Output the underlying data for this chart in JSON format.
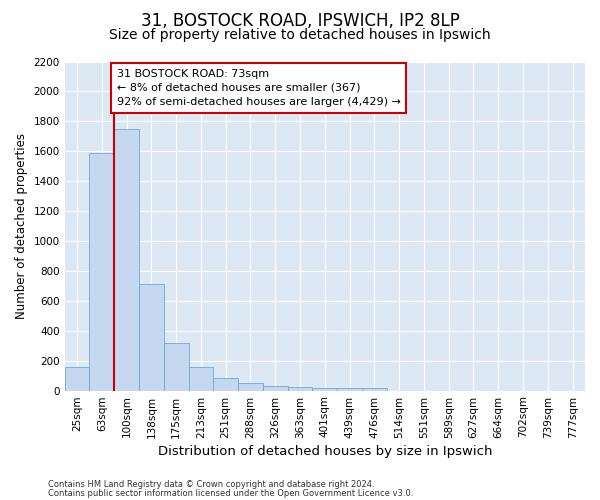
{
  "title1": "31, BOSTOCK ROAD, IPSWICH, IP2 8LP",
  "title2": "Size of property relative to detached houses in Ipswich",
  "xlabel": "Distribution of detached houses by size in Ipswich",
  "ylabel": "Number of detached properties",
  "categories": [
    "25sqm",
    "63sqm",
    "100sqm",
    "138sqm",
    "175sqm",
    "213sqm",
    "251sqm",
    "288sqm",
    "326sqm",
    "363sqm",
    "401sqm",
    "439sqm",
    "476sqm",
    "514sqm",
    "551sqm",
    "589sqm",
    "627sqm",
    "664sqm",
    "702sqm",
    "739sqm",
    "777sqm"
  ],
  "values": [
    160,
    1590,
    1750,
    710,
    315,
    160,
    85,
    50,
    30,
    25,
    20,
    20,
    20,
    0,
    0,
    0,
    0,
    0,
    0,
    0,
    0
  ],
  "bar_color": "#c5d8f0",
  "bar_edgecolor": "#6aaad4",
  "vline_color": "#cc0000",
  "annotation_text": "31 BOSTOCK ROAD: 73sqm\n← 8% of detached houses are smaller (367)\n92% of semi-detached houses are larger (4,429) →",
  "annotation_box_color": "#ffffff",
  "annotation_border_color": "#cc0000",
  "ylim": [
    0,
    2200
  ],
  "yticks": [
    0,
    200,
    400,
    600,
    800,
    1000,
    1200,
    1400,
    1600,
    1800,
    2000,
    2200
  ],
  "fig_bg_color": "#ffffff",
  "plot_bg_color": "#dde8f5",
  "grid_color": "#ffffff",
  "footer1": "Contains HM Land Registry data © Crown copyright and database right 2024.",
  "footer2": "Contains public sector information licensed under the Open Government Licence v3.0.",
  "title1_fontsize": 12,
  "title2_fontsize": 10,
  "xlabel_fontsize": 9.5,
  "ylabel_fontsize": 8.5,
  "tick_fontsize": 7.5,
  "annotation_fontsize": 8,
  "footer_fontsize": 6
}
